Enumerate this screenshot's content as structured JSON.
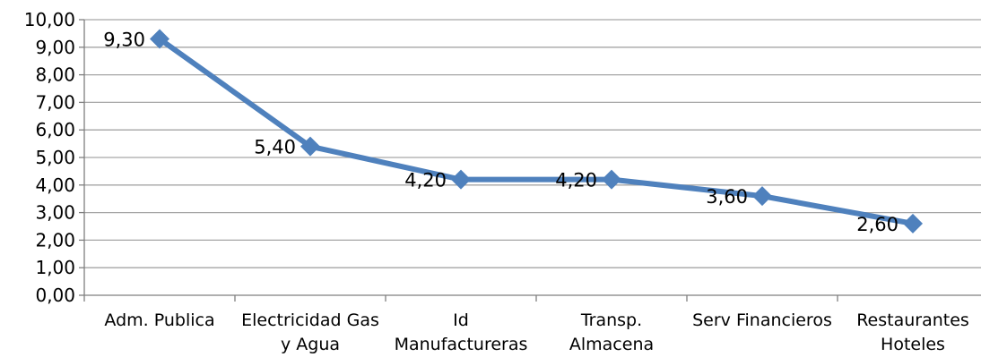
{
  "chart_data": {
    "type": "line",
    "categories": [
      [
        "Adm. Publica"
      ],
      [
        "Electricidad Gas",
        "y Agua"
      ],
      [
        "Id",
        "Manufactureras"
      ],
      [
        "Transp.",
        "Almacena"
      ],
      [
        "Serv Financieros"
      ],
      [
        "Restaurantes",
        "Hoteles"
      ]
    ],
    "series": [
      {
        "values": [
          9.3,
          5.4,
          4.2,
          4.2,
          3.6,
          2.6
        ]
      }
    ],
    "data_labels": [
      "9,30",
      "5,40",
      "4,20",
      "4,20",
      "3,60",
      "2,60"
    ],
    "y_tick_labels": [
      "0,00",
      "1,00",
      "2,00",
      "3,00",
      "4,00",
      "5,00",
      "6,00",
      "7,00",
      "8,00",
      "9,00",
      "10,00"
    ],
    "ylim": [
      0,
      10
    ],
    "grid": true,
    "legend": "none",
    "title": "",
    "xlabel": "",
    "ylabel": "",
    "colors": {
      "series": "#4F81BD",
      "grid": "#A6A6A6",
      "axis": "#7F7F7F"
    }
  }
}
